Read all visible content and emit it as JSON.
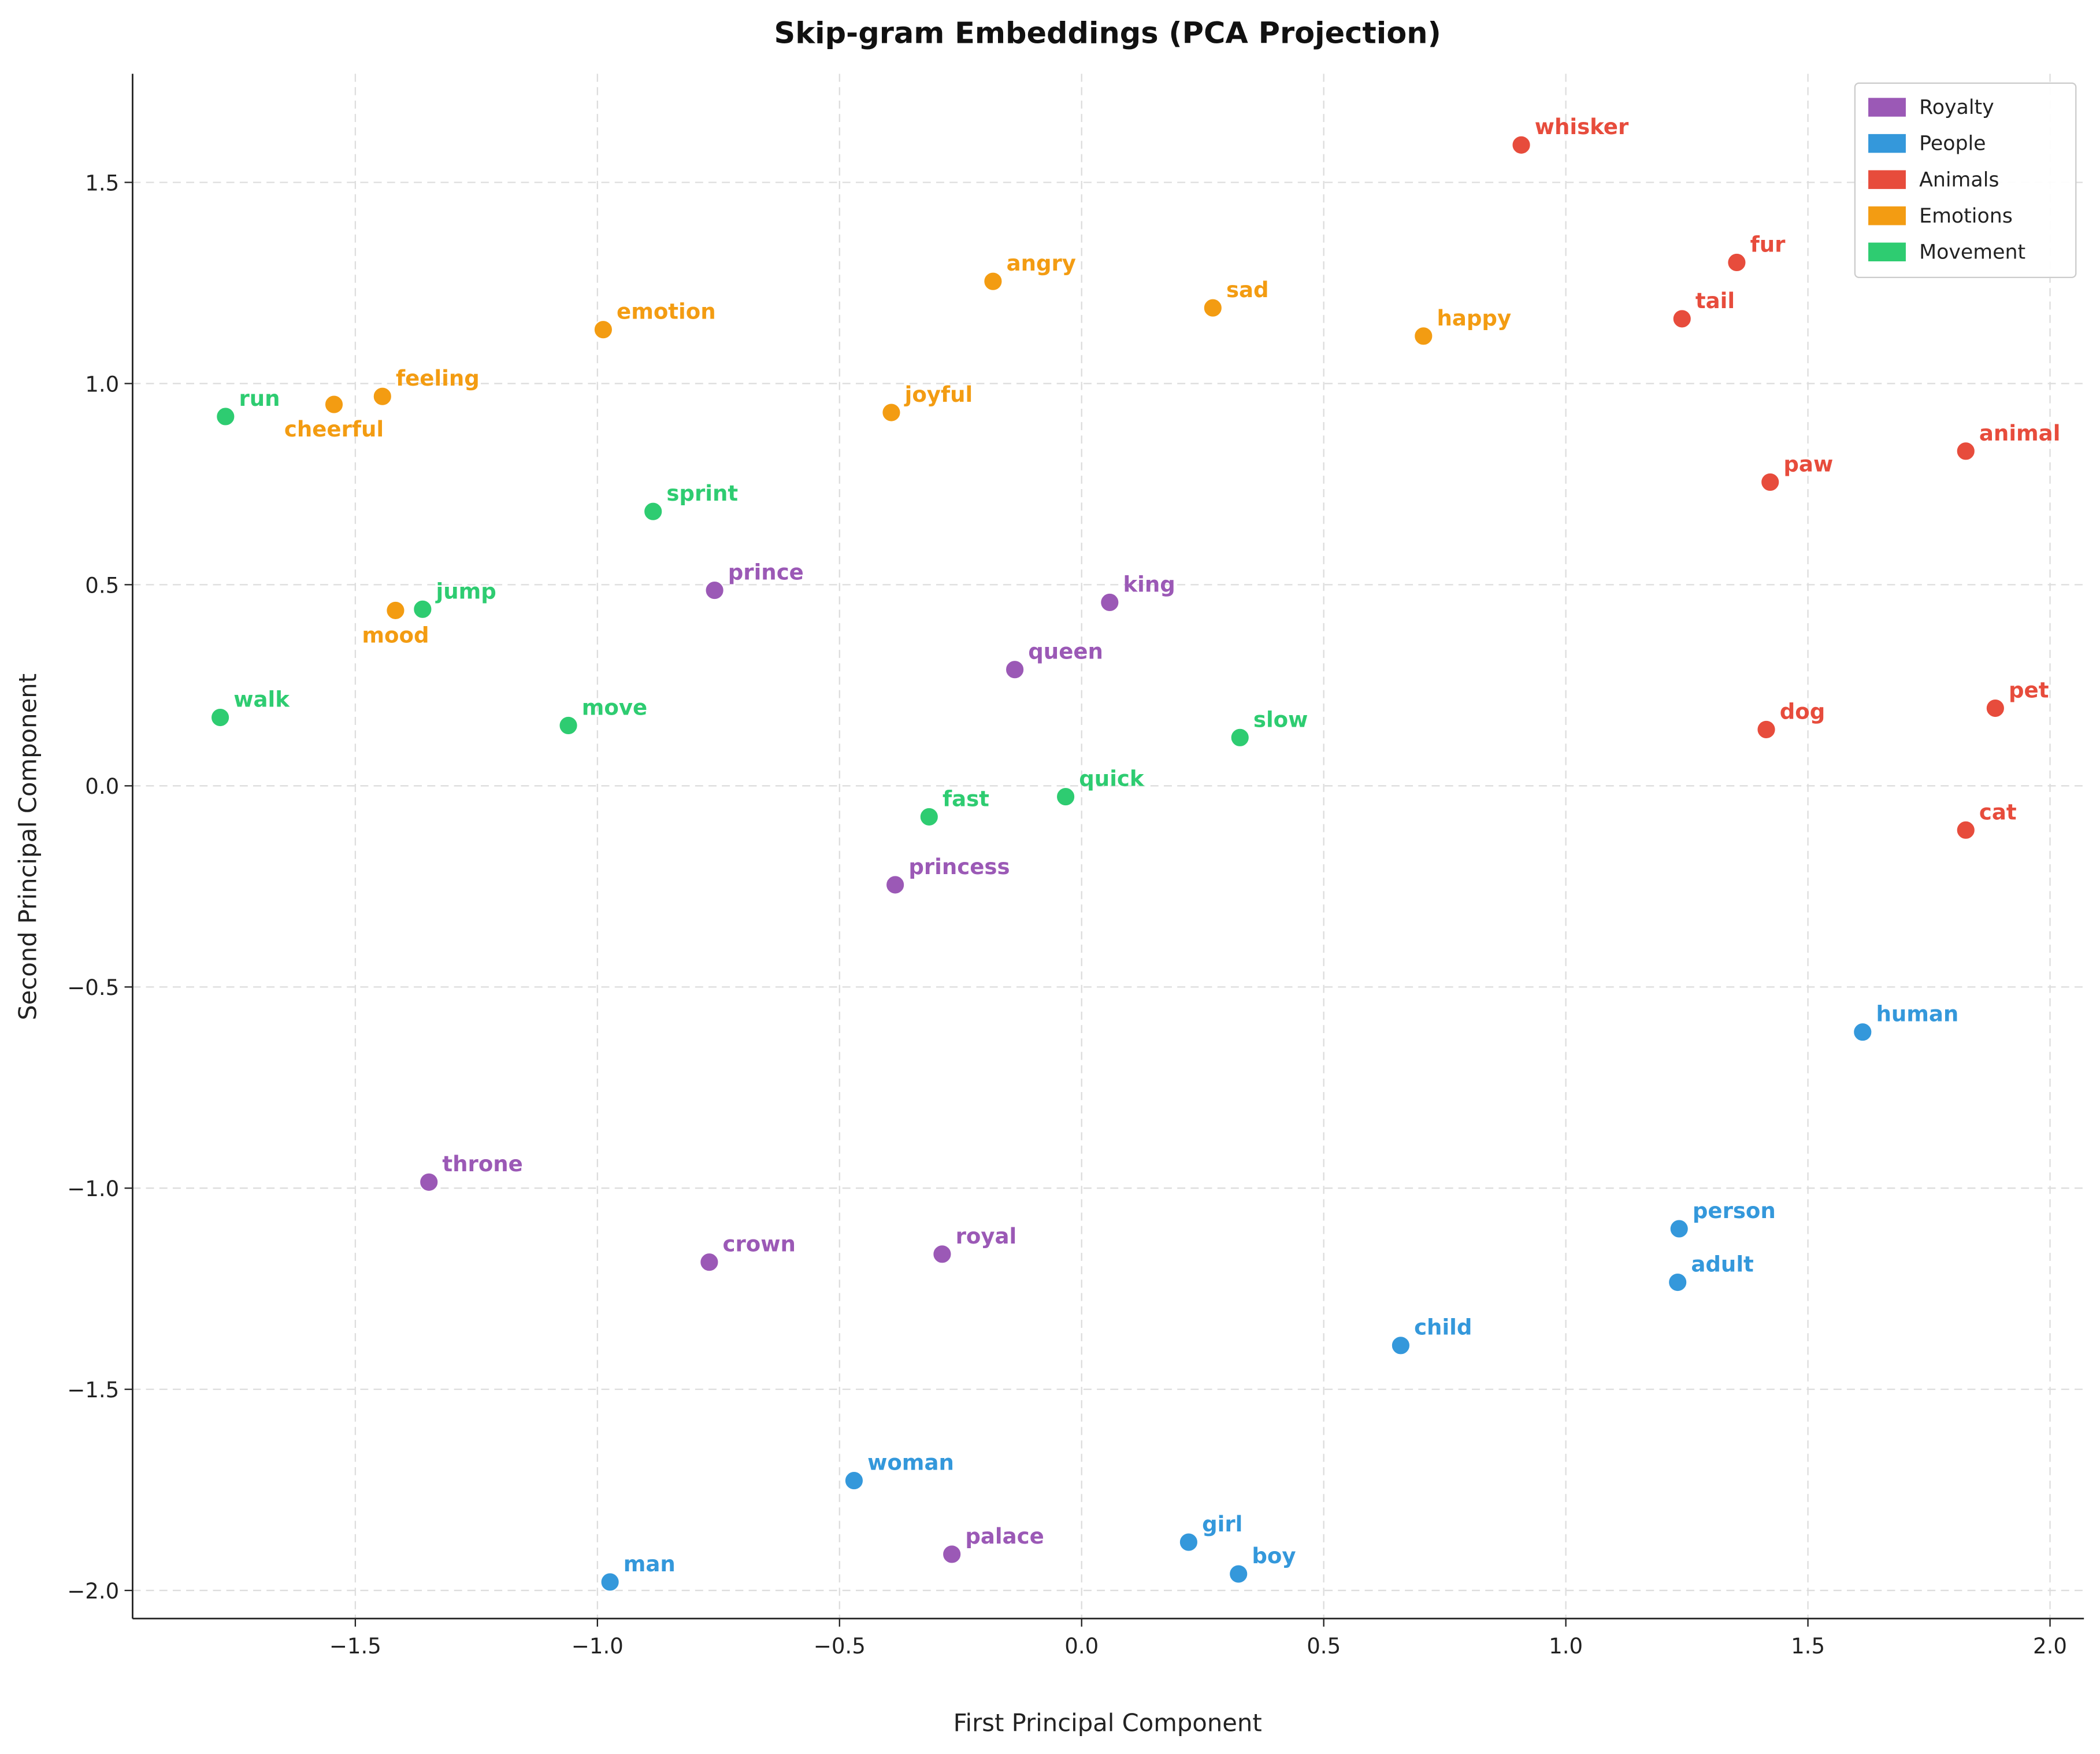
{
  "chart_data": {
    "type": "scatter",
    "title": "Skip-gram Embeddings (PCA Projection)",
    "xlabel": "First Principal Component",
    "ylabel": "Second Principal Component",
    "xlim": [
      -1.96,
      2.07
    ],
    "ylim": [
      -2.07,
      1.77
    ],
    "xticks": [
      -1.5,
      -1.0,
      -0.5,
      0.0,
      0.5,
      1.0,
      1.5,
      2.0
    ],
    "xtick_labels": [
      "−1.5",
      "−1.0",
      "−0.5",
      "0.0",
      "0.5",
      "1.0",
      "1.5",
      "2.0"
    ],
    "yticks": [
      -2.0,
      -1.5,
      -1.0,
      -0.5,
      0.0,
      0.5,
      1.0,
      1.5
    ],
    "ytick_labels": [
      "−2.0",
      "−1.5",
      "−1.0",
      "−0.5",
      "0.0",
      "0.5",
      "1.0",
      "1.5"
    ],
    "grid": true,
    "legend_position": "top-right",
    "series": [
      {
        "name": "Royalty",
        "color": "#9b59b6",
        "points": [
          {
            "label": "prince",
            "x": -0.758,
            "y": 0.486
          },
          {
            "label": "king",
            "x": 0.058,
            "y": 0.456
          },
          {
            "label": "queen",
            "x": -0.138,
            "y": 0.289
          },
          {
            "label": "princess",
            "x": -0.385,
            "y": -0.246
          },
          {
            "label": "throne",
            "x": -1.348,
            "y": -0.985
          },
          {
            "label": "crown",
            "x": -0.769,
            "y": -1.184
          },
          {
            "label": "royal",
            "x": -0.288,
            "y": -1.164
          },
          {
            "label": "palace",
            "x": -0.268,
            "y": -1.91
          }
        ]
      },
      {
        "name": "People",
        "color": "#3498db",
        "points": [
          {
            "label": "human",
            "x": 1.613,
            "y": -0.612
          },
          {
            "label": "person",
            "x": 1.234,
            "y": -1.101
          },
          {
            "label": "adult",
            "x": 1.231,
            "y": -1.234
          },
          {
            "label": "child",
            "x": 0.659,
            "y": -1.391
          },
          {
            "label": "woman",
            "x": -0.47,
            "y": -1.727
          },
          {
            "label": "girl",
            "x": 0.221,
            "y": -1.88
          },
          {
            "label": "boy",
            "x": 0.324,
            "y": -1.959
          },
          {
            "label": "man",
            "x": -0.974,
            "y": -1.979
          }
        ]
      },
      {
        "name": "Animals",
        "color": "#e74c3c",
        "points": [
          {
            "label": "whisker",
            "x": 0.908,
            "y": 1.593
          },
          {
            "label": "fur",
            "x": 1.353,
            "y": 1.301
          },
          {
            "label": "tail",
            "x": 1.24,
            "y": 1.161
          },
          {
            "label": "animal",
            "x": 1.826,
            "y": 0.832
          },
          {
            "label": "paw",
            "x": 1.422,
            "y": 0.755
          },
          {
            "label": "dog",
            "x": 1.414,
            "y": 0.14
          },
          {
            "label": "pet",
            "x": 1.887,
            "y": 0.193
          },
          {
            "label": "cat",
            "x": 1.826,
            "y": -0.11
          }
        ]
      },
      {
        "name": "Emotions",
        "color": "#f39c12",
        "points": [
          {
            "label": "cheerful",
            "x": -1.544,
            "y": 0.948
          },
          {
            "label": "feeling",
            "x": -1.444,
            "y": 0.968
          },
          {
            "label": "emotion",
            "x": -0.988,
            "y": 1.134
          },
          {
            "label": "joyful",
            "x": -0.393,
            "y": 0.928
          },
          {
            "label": "angry",
            "x": -0.183,
            "y": 1.254
          },
          {
            "label": "sad",
            "x": 0.271,
            "y": 1.188
          },
          {
            "label": "happy",
            "x": 0.706,
            "y": 1.118
          },
          {
            "label": "mood",
            "x": -1.417,
            "y": 0.436
          }
        ]
      },
      {
        "name": "Movement",
        "color": "#2ecc71",
        "points": [
          {
            "label": "run",
            "x": -1.768,
            "y": 0.918
          },
          {
            "label": "sprint",
            "x": -0.885,
            "y": 0.682
          },
          {
            "label": "jump",
            "x": -1.361,
            "y": 0.439
          },
          {
            "label": "walk",
            "x": -1.779,
            "y": 0.17
          },
          {
            "label": "move",
            "x": -1.06,
            "y": 0.15
          },
          {
            "label": "slow",
            "x": 0.327,
            "y": 0.12
          },
          {
            "label": "quick",
            "x": -0.033,
            "y": -0.027
          },
          {
            "label": "fast",
            "x": -0.315,
            "y": -0.077
          }
        ]
      }
    ]
  }
}
